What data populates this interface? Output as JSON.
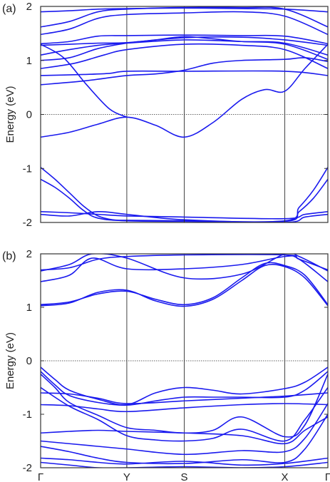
{
  "chart_data": [
    {
      "type": "line",
      "panel_label": "(a)",
      "ylabel": "Energy (eV)",
      "ylim": [
        -2,
        2
      ],
      "y_ticks": [
        "2",
        "1",
        "0",
        "-1",
        "-2"
      ],
      "x_ticks": [],
      "kpath_positions": [
        0,
        0.3,
        0.5,
        0.85,
        1.0
      ],
      "fermi_level": 0,
      "line_color": "#1a1aee",
      "series": [
        {
          "x": [
            0,
            0.1,
            0.2,
            0.3,
            0.4,
            0.5,
            0.6,
            0.7,
            0.78,
            0.85,
            0.92,
            1.0
          ],
          "y": [
            -0.42,
            -0.33,
            -0.18,
            -0.05,
            -0.2,
            -0.42,
            -0.15,
            0.28,
            0.46,
            0.43,
            0.85,
            1.3
          ]
        },
        {
          "x": [
            0,
            0.08,
            0.16,
            0.24,
            0.3
          ],
          "y": [
            1.3,
            1.05,
            0.55,
            0.1,
            -0.05
          ]
        },
        {
          "x": [
            0,
            0.15,
            0.3,
            0.4,
            0.5,
            0.6,
            0.7,
            0.85,
            0.92,
            1.0
          ],
          "y": [
            0.55,
            0.62,
            0.72,
            0.75,
            0.82,
            0.95,
            1.0,
            1.02,
            1.05,
            0.98
          ]
        },
        {
          "x": [
            0,
            0.15,
            0.24,
            0.3,
            0.5,
            0.85,
            1.0
          ],
          "y": [
            0.72,
            0.74,
            0.76,
            0.8,
            0.8,
            0.8,
            0.72
          ]
        },
        {
          "x": [
            0,
            0.12,
            0.22,
            0.3,
            0.5,
            0.7,
            0.85,
            1.0
          ],
          "y": [
            0.85,
            0.95,
            1.1,
            1.2,
            1.3,
            1.28,
            1.2,
            0.85
          ]
        },
        {
          "x": [
            0,
            0.1,
            0.2,
            0.3,
            0.4,
            0.5,
            0.6,
            0.7,
            0.85,
            1.0
          ],
          "y": [
            1.0,
            1.05,
            1.22,
            1.32,
            1.38,
            1.44,
            1.4,
            1.35,
            1.3,
            1.02
          ]
        },
        {
          "x": [
            0,
            0.1,
            0.2,
            0.3,
            0.5,
            0.7,
            0.85,
            1.0
          ],
          "y": [
            1.1,
            1.2,
            1.28,
            1.32,
            1.38,
            1.35,
            1.32,
            1.1
          ]
        },
        {
          "x": [
            0,
            0.1,
            0.2,
            0.3,
            0.5,
            0.7,
            0.85,
            1.0
          ],
          "y": [
            1.28,
            1.3,
            1.32,
            1.33,
            1.42,
            1.43,
            1.38,
            1.28
          ]
        },
        {
          "x": [
            0,
            0.1,
            0.2,
            0.3,
            0.5,
            0.7,
            0.85,
            1.0
          ],
          "y": [
            1.31,
            1.35,
            1.45,
            1.46,
            1.47,
            1.46,
            1.45,
            1.31
          ]
        },
        {
          "x": [
            0,
            0.1,
            0.2,
            0.3,
            0.5,
            0.7,
            0.85,
            1.0
          ],
          "y": [
            1.48,
            1.58,
            1.78,
            1.85,
            1.88,
            1.9,
            1.82,
            1.48
          ]
        },
        {
          "x": [
            0,
            0.1,
            0.2,
            0.3,
            0.5,
            0.7,
            0.85,
            1.0
          ],
          "y": [
            1.62,
            1.72,
            1.9,
            1.95,
            1.98,
            1.98,
            1.95,
            1.62
          ]
        },
        {
          "x": [
            0,
            0.1,
            0.2,
            0.3,
            0.5,
            0.7,
            0.85,
            1.0
          ],
          "y": [
            1.9,
            1.92,
            1.95,
            1.96,
            1.97,
            1.96,
            1.95,
            1.9
          ]
        },
        {
          "x": [
            0,
            0.05,
            0.1,
            0.15,
            0.2,
            0.25,
            0.3,
            0.5,
            0.85,
            0.9,
            0.95,
            1.0
          ],
          "y": [
            -0.98,
            -1.2,
            -1.45,
            -1.7,
            -1.88,
            -1.95,
            -1.96,
            -1.97,
            -1.97,
            -1.72,
            -1.4,
            -0.98
          ]
        },
        {
          "x": [
            0,
            0.05,
            0.1,
            0.15,
            0.2,
            0.3,
            0.5,
            0.85,
            0.9,
            0.95,
            1.0
          ],
          "y": [
            -1.2,
            -1.35,
            -1.55,
            -1.78,
            -1.92,
            -1.97,
            -1.98,
            -1.98,
            -1.8,
            -1.55,
            -1.2
          ]
        },
        {
          "x": [
            0,
            0.1,
            0.2,
            0.3,
            0.5,
            0.85,
            0.92,
            1.0
          ],
          "y": [
            -1.8,
            -1.82,
            -1.85,
            -1.88,
            -1.9,
            -1.93,
            -1.85,
            -1.8
          ]
        },
        {
          "x": [
            0,
            0.1,
            0.2,
            0.3,
            0.5,
            0.85,
            0.92,
            1.0
          ],
          "y": [
            -1.85,
            -1.88,
            -1.8,
            -1.85,
            -1.95,
            -2.0,
            -1.9,
            -1.85
          ]
        }
      ]
    },
    {
      "type": "line",
      "panel_label": "(b)",
      "ylabel": "Energy (eV)",
      "ylim": [
        -2,
        2
      ],
      "y_ticks": [
        "2",
        "1",
        "0",
        "-1",
        "-2"
      ],
      "x_ticks": [
        "Γ",
        "Y",
        "S",
        "X",
        "Γ"
      ],
      "kpath_positions": [
        0,
        0.3,
        0.5,
        0.85,
        1.0
      ],
      "fermi_level": 0,
      "line_color": "#1a1aee",
      "series": [
        {
          "x": [
            0,
            0.1,
            0.2,
            0.3,
            0.4,
            0.5,
            0.6,
            0.7,
            0.78,
            0.85,
            0.92,
            1.0
          ],
          "y": [
            1.05,
            1.1,
            1.25,
            1.3,
            1.15,
            1.05,
            1.18,
            1.55,
            1.82,
            1.78,
            1.6,
            1.05
          ]
        },
        {
          "x": [
            0,
            0.1,
            0.2,
            0.3,
            0.4,
            0.5,
            0.6,
            0.7,
            0.78,
            0.85,
            0.92,
            1.0
          ],
          "y": [
            1.03,
            1.08,
            1.28,
            1.32,
            1.12,
            1.02,
            1.15,
            1.5,
            1.78,
            1.76,
            1.55,
            1.03
          ]
        },
        {
          "x": [
            0,
            0.1,
            0.18,
            0.3,
            0.5,
            0.7,
            0.85,
            0.9,
            1.0
          ],
          "y": [
            1.48,
            1.6,
            1.92,
            1.72,
            1.72,
            1.8,
            1.95,
            1.9,
            1.48
          ]
        },
        {
          "x": [
            0,
            0.1,
            0.18,
            0.3,
            0.5,
            0.7,
            0.85,
            0.9,
            1.0
          ],
          "y": [
            1.68,
            1.8,
            2.0,
            1.92,
            1.55,
            1.62,
            2.0,
            1.95,
            1.68
          ]
        },
        {
          "x": [
            0,
            0.1,
            0.2,
            0.3,
            0.5,
            0.85,
            0.9,
            1.0
          ],
          "y": [
            1.7,
            1.74,
            1.9,
            1.95,
            1.98,
            1.98,
            1.9,
            1.7
          ]
        },
        {
          "x": [
            0,
            0.05,
            0.1,
            0.2,
            0.3,
            0.4,
            0.5,
            0.6,
            0.7,
            0.85,
            0.92,
            1.0
          ],
          "y": [
            -0.12,
            -0.35,
            -0.55,
            -0.72,
            -0.82,
            -0.6,
            -0.5,
            -0.55,
            -0.62,
            -0.52,
            -0.4,
            -0.12
          ]
        },
        {
          "x": [
            0,
            0.05,
            0.1,
            0.2,
            0.3,
            0.4,
            0.5,
            0.6,
            0.7,
            0.85,
            0.92,
            1.0
          ],
          "y": [
            -0.2,
            -0.45,
            -0.65,
            -0.78,
            -0.83,
            -0.75,
            -0.68,
            -0.68,
            -0.68,
            -0.68,
            -0.55,
            -0.2
          ]
        },
        {
          "x": [
            0,
            0.1,
            0.2,
            0.3,
            0.5,
            0.7,
            0.85,
            1.0
          ],
          "y": [
            -0.6,
            -0.62,
            -0.7,
            -0.8,
            -0.75,
            -0.7,
            -0.66,
            -0.6
          ]
        },
        {
          "x": [
            0,
            0.1,
            0.2,
            0.3,
            0.5,
            0.7,
            0.85,
            1.0
          ],
          "y": [
            -0.82,
            -0.84,
            -0.9,
            -0.95,
            -0.88,
            -0.82,
            -0.8,
            -0.82
          ]
        },
        {
          "x": [
            0,
            0.05,
            0.1,
            0.2,
            0.3,
            0.4,
            0.5,
            0.6,
            0.7,
            0.85,
            0.92,
            1.0
          ],
          "y": [
            -0.25,
            -0.5,
            -0.78,
            -1.02,
            -1.25,
            -1.3,
            -1.35,
            -1.3,
            -1.05,
            -1.42,
            -1.2,
            -0.25
          ]
        },
        {
          "x": [
            0,
            0.1,
            0.2,
            0.3,
            0.4,
            0.5,
            0.6,
            0.7,
            0.85,
            0.92,
            1.0
          ],
          "y": [
            -0.5,
            -0.85,
            -1.1,
            -1.4,
            -1.48,
            -1.5,
            -1.45,
            -1.28,
            -1.5,
            -1.1,
            -0.5
          ]
        },
        {
          "x": [
            0,
            0.1,
            0.2,
            0.3,
            0.5,
            0.7,
            0.85,
            0.92,
            1.0
          ],
          "y": [
            -1.35,
            -1.32,
            -1.3,
            -1.32,
            -1.35,
            -1.4,
            -1.55,
            -1.3,
            -1.05
          ]
        },
        {
          "x": [
            0,
            0.1,
            0.2,
            0.3,
            0.5,
            0.7,
            0.85,
            0.92,
            1.0
          ],
          "y": [
            -1.5,
            -1.55,
            -1.6,
            -1.65,
            -1.75,
            -1.68,
            -1.7,
            -1.45,
            -0.8
          ]
        },
        {
          "x": [
            0,
            0.1,
            0.2,
            0.3,
            0.5,
            0.7,
            0.85,
            0.92,
            1.0
          ],
          "y": [
            -1.6,
            -1.7,
            -1.82,
            -1.9,
            -1.92,
            -1.85,
            -1.9,
            -1.65,
            -1.0
          ]
        },
        {
          "x": [
            0,
            0.1,
            0.2,
            0.3,
            0.5,
            0.7,
            0.85,
            1.0
          ],
          "y": [
            -1.82,
            -1.85,
            -1.9,
            -1.93,
            -1.88,
            -1.95,
            -1.92,
            -1.82
          ]
        },
        {
          "x": [
            0,
            0.1,
            0.2,
            0.3,
            0.5,
            0.7,
            0.85,
            1.0
          ],
          "y": [
            -1.9,
            -1.95,
            -2.0,
            -2.0,
            -1.98,
            -2.0,
            -1.98,
            -1.9
          ]
        }
      ]
    }
  ]
}
